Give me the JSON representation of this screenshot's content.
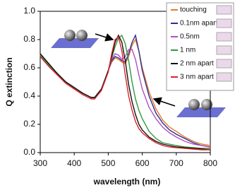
{
  "chart_data": {
    "type": "line",
    "x_label": "wavelength (nm)",
    "y_label": "Q extinction",
    "x": [
      300,
      325,
      350,
      375,
      400,
      425,
      450,
      460,
      480,
      500,
      510,
      520,
      530,
      540,
      550,
      560,
      570,
      580,
      590,
      600,
      620,
      640,
      660,
      680,
      700,
      725,
      750,
      775,
      800
    ],
    "series": [
      {
        "name": "touching",
        "color": "#e8782a",
        "values": [
          0.69,
          0.62,
          0.56,
          0.5,
          0.46,
          0.42,
          0.39,
          0.39,
          0.45,
          0.58,
          0.64,
          0.67,
          0.66,
          0.64,
          0.63,
          0.68,
          0.76,
          0.8,
          0.72,
          0.6,
          0.43,
          0.31,
          0.23,
          0.18,
          0.15,
          0.11,
          0.08,
          0.06,
          0.05
        ]
      },
      {
        "name": "0.1nm apart",
        "color": "#2b2e8f",
        "values": [
          0.69,
          0.62,
          0.56,
          0.5,
          0.46,
          0.42,
          0.39,
          0.39,
          0.45,
          0.58,
          0.65,
          0.68,
          0.67,
          0.65,
          0.64,
          0.7,
          0.78,
          0.83,
          0.72,
          0.58,
          0.4,
          0.28,
          0.21,
          0.16,
          0.13,
          0.1,
          0.07,
          0.05,
          0.04
        ]
      },
      {
        "name": "0.5nm",
        "color": "#b04fc0",
        "values": [
          0.69,
          0.62,
          0.56,
          0.5,
          0.46,
          0.42,
          0.39,
          0.39,
          0.45,
          0.58,
          0.66,
          0.7,
          0.69,
          0.66,
          0.68,
          0.73,
          0.73,
          0.66,
          0.55,
          0.45,
          0.32,
          0.24,
          0.18,
          0.14,
          0.11,
          0.08,
          0.06,
          0.05,
          0.04
        ]
      },
      {
        "name": "1 nm",
        "color": "#2e9a3c",
        "values": [
          0.69,
          0.62,
          0.56,
          0.5,
          0.46,
          0.42,
          0.39,
          0.39,
          0.45,
          0.58,
          0.67,
          0.75,
          0.81,
          0.83,
          0.77,
          0.65,
          0.5,
          0.38,
          0.3,
          0.24,
          0.15,
          0.1,
          0.07,
          0.06,
          0.05,
          0.04,
          0.035,
          0.03,
          0.03
        ]
      },
      {
        "name": "2 nm apart",
        "color": "#111111",
        "values": [
          0.7,
          0.63,
          0.56,
          0.5,
          0.46,
          0.42,
          0.39,
          0.39,
          0.45,
          0.58,
          0.68,
          0.78,
          0.83,
          0.78,
          0.65,
          0.48,
          0.36,
          0.27,
          0.2,
          0.16,
          0.11,
          0.08,
          0.06,
          0.05,
          0.04,
          0.035,
          0.03,
          0.025,
          0.02
        ]
      },
      {
        "name": "3 nm apart",
        "color": "#e0202a",
        "values": [
          0.68,
          0.61,
          0.55,
          0.49,
          0.45,
          0.41,
          0.38,
          0.38,
          0.44,
          0.57,
          0.7,
          0.8,
          0.82,
          0.72,
          0.55,
          0.4,
          0.3,
          0.22,
          0.17,
          0.14,
          0.1,
          0.07,
          0.05,
          0.04,
          0.035,
          0.03,
          0.025,
          0.02,
          0.02
        ]
      }
    ],
    "xlim": [
      300,
      800
    ],
    "xticks": [
      300,
      400,
      500,
      600,
      700,
      800
    ],
    "ylim": [
      0,
      1
    ],
    "yticks": [
      {
        "value": 0,
        "label": "0.0"
      },
      0.2,
      0.4,
      0.6,
      0.8,
      {
        "value": 1,
        "label": "1.0"
      }
    ],
    "legend": "upper right"
  }
}
